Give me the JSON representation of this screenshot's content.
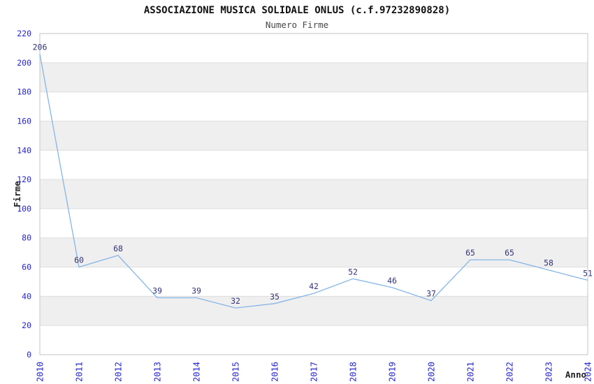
{
  "chart_data": {
    "type": "line",
    "title": "ASSOCIAZIONE MUSICA SOLIDALE ONLUS (c.f.97232890828)",
    "subtitle": "Numero Firme",
    "xlabel": "Anno",
    "ylabel": "Firme",
    "categories": [
      "2010",
      "2011",
      "2012",
      "2013",
      "2014",
      "2015",
      "2016",
      "2017",
      "2018",
      "2019",
      "2020",
      "2021",
      "2022",
      "2023",
      "2024"
    ],
    "values": [
      206,
      60,
      68,
      39,
      39,
      32,
      35,
      42,
      52,
      46,
      37,
      65,
      65,
      58,
      51
    ],
    "ylim": [
      0,
      220
    ],
    "ytick_step": 20,
    "grid": "horizontal-alternating-bands",
    "legend": "none",
    "data_labels_visible": true,
    "colors": {
      "line": "#85B5E8",
      "tick_labels": "#2424CC",
      "data_labels": "#333377",
      "band_fill": "#EFEFEF",
      "plot_border": "#C6C6C6",
      "gridline": "#DDDDDD",
      "title": "#111111",
      "subtitle": "#484848",
      "axis_titles": "#222222",
      "background": "#FFFFFF"
    }
  }
}
